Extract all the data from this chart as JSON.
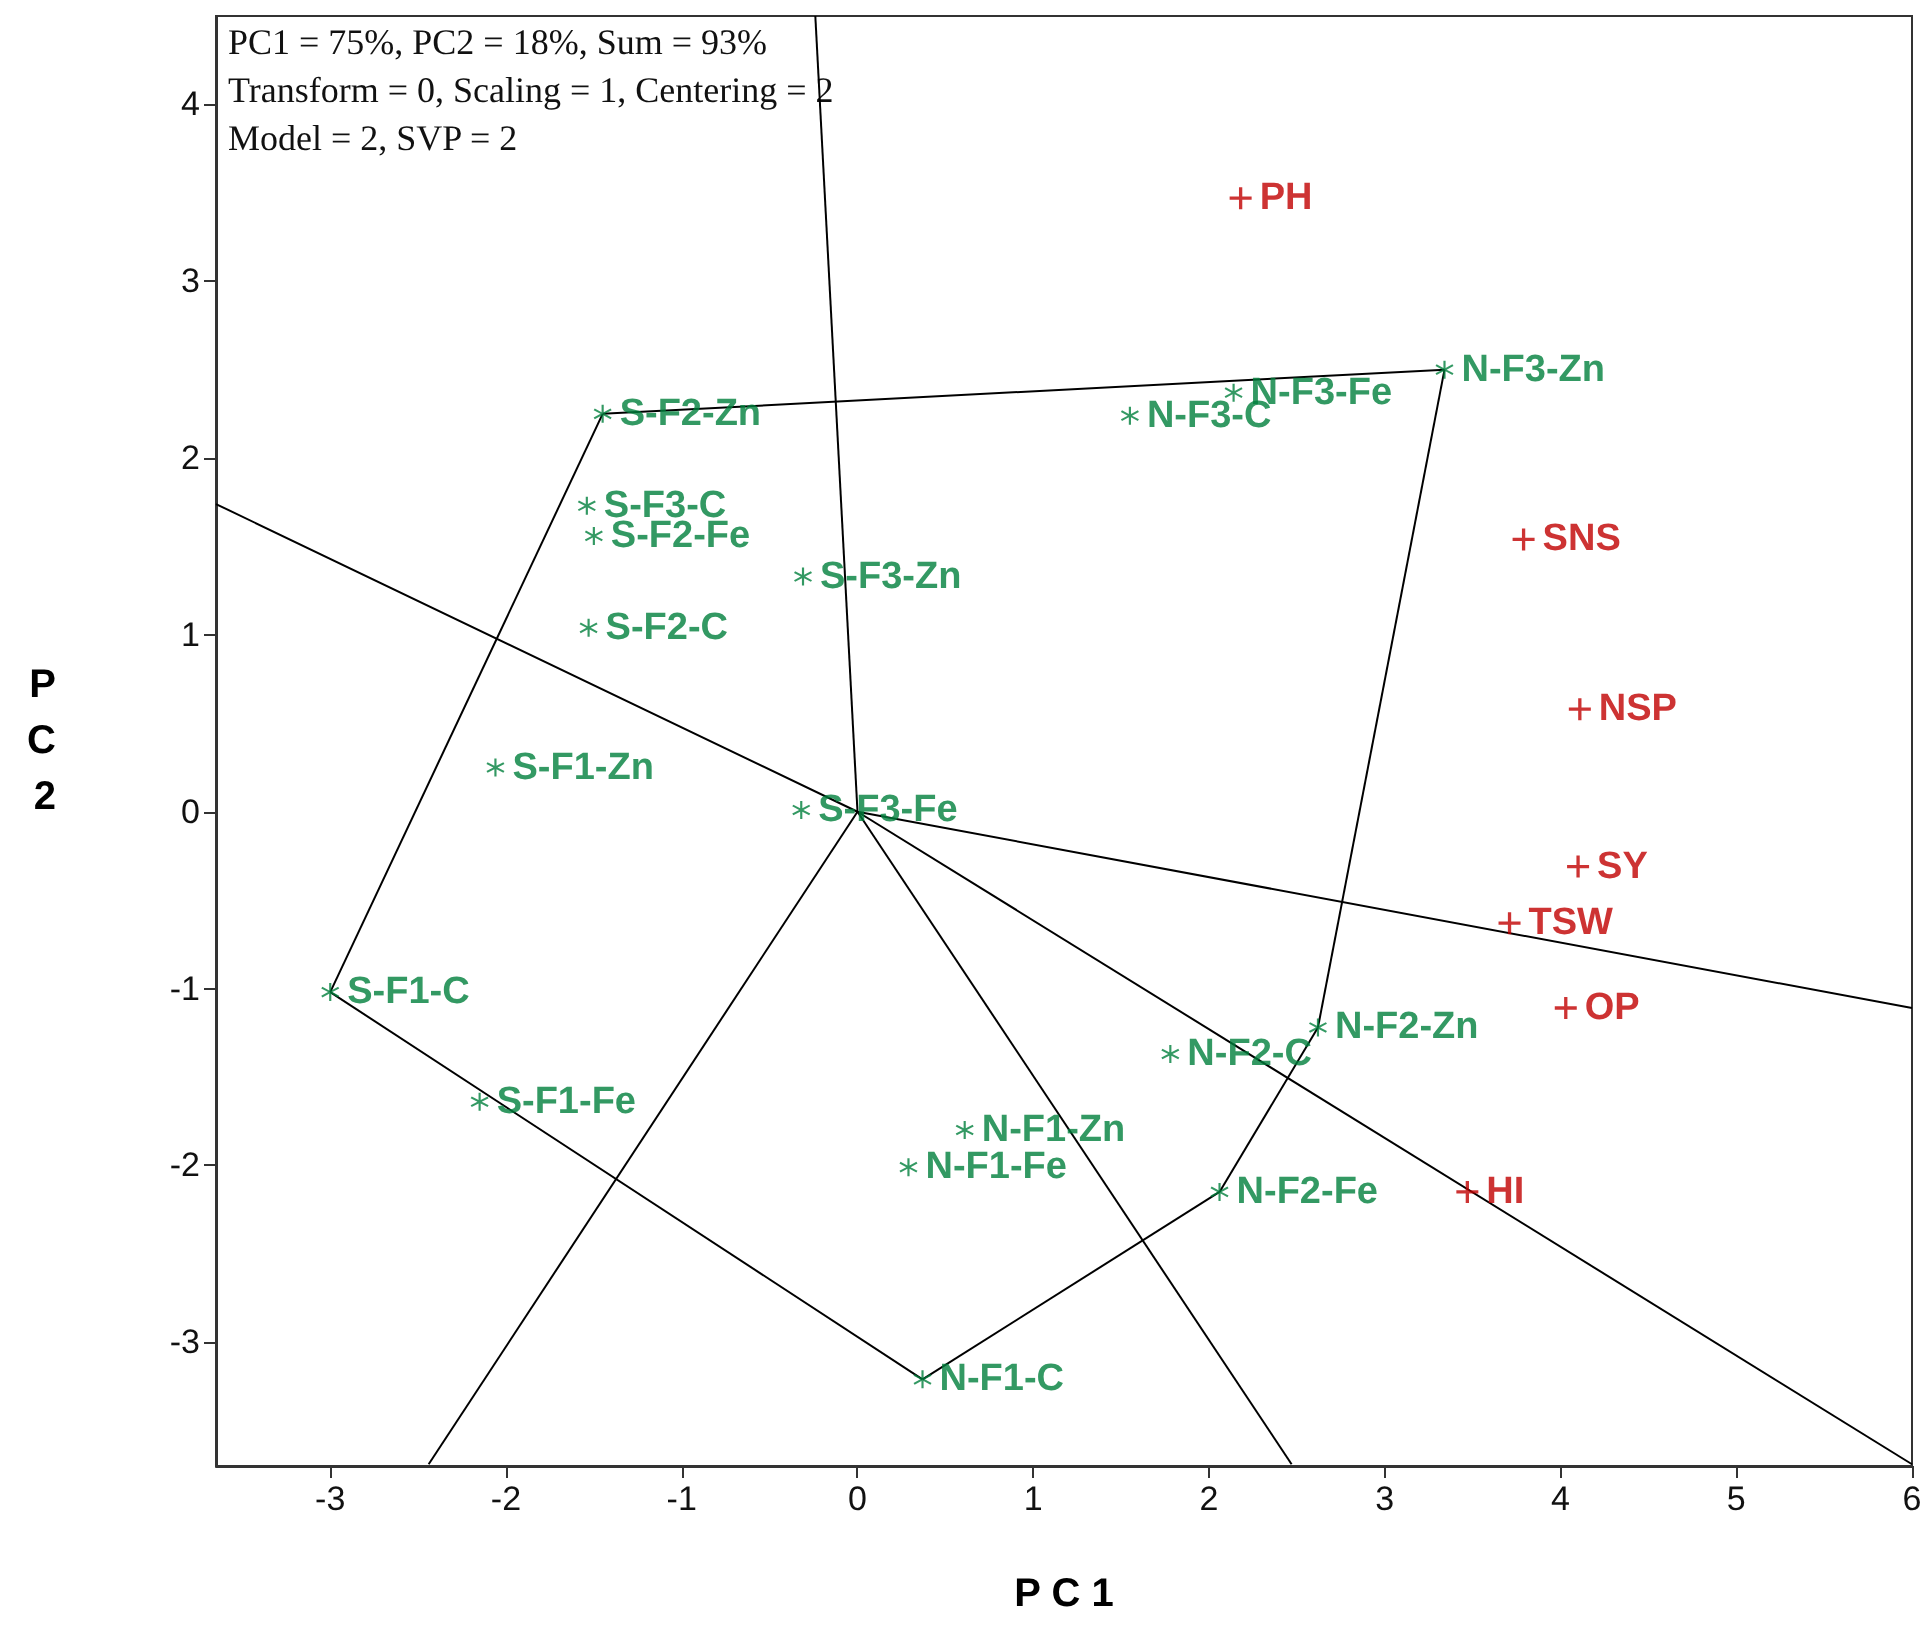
{
  "chart_data": {
    "type": "scatter",
    "xlabel": "P C 1",
    "ylabel": "P C 2",
    "annotations": [
      "PC1 = 75%, PC2 = 18%, Sum = 93%",
      "Transform = 0, Scaling = 1, Centering = 2",
      "Model = 2, SVP = 2"
    ],
    "xlim": [
      -3.65,
      6.0
    ],
    "xticks": [
      -3,
      -2,
      -1,
      0,
      1,
      2,
      3,
      4,
      5,
      6
    ],
    "ylim": [
      -3.7,
      4.5
    ],
    "yticks": [
      -3,
      -2,
      -1,
      0,
      1,
      2,
      3,
      4
    ],
    "grid": false,
    "legend": false,
    "series": [
      {
        "name": "S-F2-Zn",
        "color": "#00803c",
        "marker": "star",
        "x": [
          -1.45
        ],
        "values": [
          2.25
        ]
      },
      {
        "name": "S-F3-C",
        "color": "#00803c",
        "marker": "star",
        "x": [
          -1.54
        ],
        "values": [
          1.73
        ]
      },
      {
        "name": "S-F2-Fe",
        "color": "#00803c",
        "marker": "star",
        "x": [
          -1.5
        ],
        "values": [
          1.56
        ]
      },
      {
        "name": "S-F3-Zn",
        "color": "#00803c",
        "marker": "star",
        "x": [
          -0.31
        ],
        "values": [
          1.33
        ]
      },
      {
        "name": "S-F2-C",
        "color": "#00803c",
        "marker": "star",
        "x": [
          -1.53
        ],
        "values": [
          1.04
        ]
      },
      {
        "name": "S-F1-Zn",
        "color": "#00803c",
        "marker": "star",
        "x": [
          -2.06
        ],
        "values": [
          0.25
        ]
      },
      {
        "name": "S-F3-Fe",
        "color": "#00803c",
        "marker": "star",
        "x": [
          -0.32
        ],
        "values": [
          0.01
        ]
      },
      {
        "name": "S-F1-C",
        "color": "#00803c",
        "marker": "star",
        "x": [
          -3.0
        ],
        "values": [
          -1.02
        ]
      },
      {
        "name": "S-F1-Fe",
        "color": "#00803c",
        "marker": "star",
        "x": [
          -2.15
        ],
        "values": [
          -1.64
        ]
      },
      {
        "name": "N-F1-Zn",
        "color": "#00803c",
        "marker": "star",
        "x": [
          0.61
        ],
        "values": [
          -1.8
        ]
      },
      {
        "name": "N-F1-Fe",
        "color": "#00803c",
        "marker": "star",
        "x": [
          0.29
        ],
        "values": [
          -2.01
        ]
      },
      {
        "name": "N-F1-C",
        "color": "#00803c",
        "marker": "star",
        "x": [
          0.37
        ],
        "values": [
          -3.21
        ]
      },
      {
        "name": "N-F2-C",
        "color": "#00803c",
        "marker": "star",
        "x": [
          1.78
        ],
        "values": [
          -1.37
        ]
      },
      {
        "name": "N-F2-Zn",
        "color": "#00803c",
        "marker": "star",
        "x": [
          2.62
        ],
        "values": [
          -1.22
        ]
      },
      {
        "name": "N-F2-Fe",
        "color": "#00803c",
        "marker": "star",
        "x": [
          2.06
        ],
        "values": [
          -2.15
        ]
      },
      {
        "name": "N-F3-C",
        "color": "#00803c",
        "marker": "star",
        "x": [
          1.55
        ],
        "values": [
          2.24
        ]
      },
      {
        "name": "N-F3-Fe",
        "color": "#00803c",
        "marker": "star",
        "x": [
          2.14
        ],
        "values": [
          2.37
        ]
      },
      {
        "name": "N-F3-Zn",
        "color": "#00803c",
        "marker": "star",
        "x": [
          3.34
        ],
        "values": [
          2.5
        ]
      },
      {
        "name": "PH",
        "color": "#c00000",
        "marker": "cross",
        "x": [
          2.18
        ],
        "values": [
          3.47
        ]
      },
      {
        "name": "SNS",
        "color": "#c00000",
        "marker": "cross",
        "x": [
          3.79
        ],
        "values": [
          1.54
        ]
      },
      {
        "name": "NSP",
        "color": "#c00000",
        "marker": "cross",
        "x": [
          4.11
        ],
        "values": [
          0.58
        ]
      },
      {
        "name": "SY",
        "color": "#c00000",
        "marker": "cross",
        "x": [
          4.1
        ],
        "values": [
          -0.31
        ]
      },
      {
        "name": "TSW",
        "color": "#c00000",
        "marker": "cross",
        "x": [
          3.71
        ],
        "values": [
          -0.63
        ]
      },
      {
        "name": "OP",
        "color": "#c00000",
        "marker": "cross",
        "x": [
          4.03
        ],
        "values": [
          -1.11
        ]
      },
      {
        "name": "HI",
        "color": "#c00000",
        "marker": "cross",
        "x": [
          3.47
        ],
        "values": [
          -2.15
        ]
      },
      {
        "type": "line",
        "color": "#000000",
        "marker": "none",
        "x": [
          -1.45,
          3.34
        ],
        "values": [
          2.25,
          2.5
        ]
      },
      {
        "type": "line",
        "color": "#000000",
        "marker": "none",
        "x": [
          2.62,
          3.34
        ],
        "values": [
          -1.22,
          2.5
        ]
      },
      {
        "type": "line",
        "color": "#000000",
        "marker": "none",
        "x": [
          2.06,
          2.62
        ],
        "values": [
          -2.15,
          -1.22
        ]
      },
      {
        "type": "line",
        "color": "#000000",
        "marker": "none",
        "x": [
          0.37,
          2.06
        ],
        "values": [
          -3.21,
          -2.15
        ]
      },
      {
        "type": "line",
        "color": "#000000",
        "marker": "none",
        "x": [
          -3.0,
          0.37
        ],
        "values": [
          -1.02,
          -3.21
        ]
      },
      {
        "type": "line",
        "color": "#000000",
        "marker": "none",
        "x": [
          -3.0,
          -1.45
        ],
        "values": [
          -1.02,
          2.25
        ]
      },
      {
        "type": "line",
        "color": "#000000",
        "marker": "none",
        "x": [
          -0.24,
          0
        ],
        "values": [
          4.5,
          0
        ]
      },
      {
        "type": "line",
        "color": "#000000",
        "marker": "none",
        "x": [
          -3.65,
          0,
          6.0
        ],
        "values": [
          1.74,
          0,
          -1.11
        ]
      },
      {
        "type": "line",
        "color": "#000000",
        "marker": "none",
        "x": [
          0,
          6.0
        ],
        "values": [
          0,
          -3.69
        ]
      },
      {
        "type": "line",
        "color": "#000000",
        "marker": "none",
        "x": [
          0,
          2.47
        ],
        "values": [
          0,
          -3.69
        ]
      },
      {
        "type": "line",
        "color": "#000000",
        "marker": "none",
        "x": [
          -2.44,
          0
        ],
        "values": [
          -3.69,
          0
        ]
      }
    ]
  }
}
